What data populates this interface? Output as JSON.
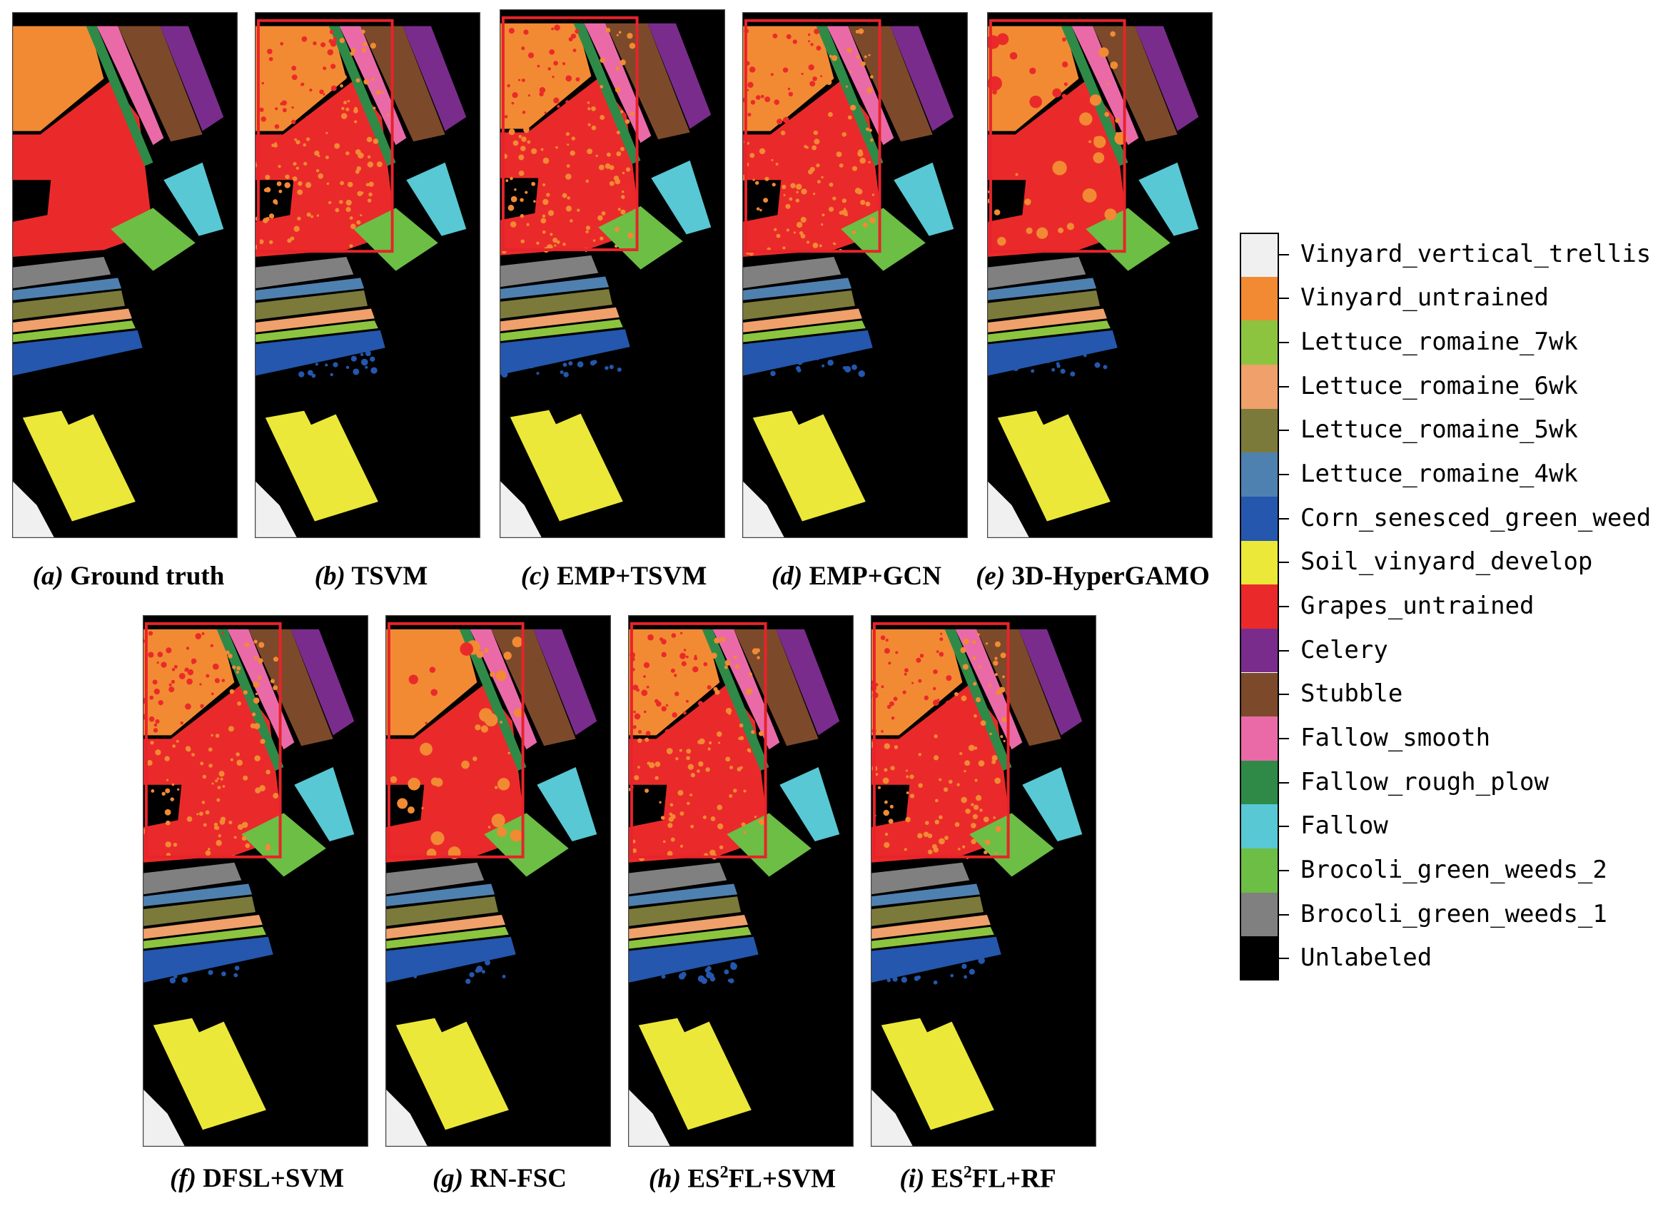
{
  "panels": [
    {
      "id": "a",
      "letter": "(a)",
      "method": "Ground truth",
      "sup": "",
      "method_tail": "",
      "frame": false
    },
    {
      "id": "b",
      "letter": "(b)",
      "method": "TSVM",
      "sup": "",
      "method_tail": "",
      "frame": true
    },
    {
      "id": "c",
      "letter": "(c)",
      "method": "EMP+TSVM",
      "sup": "",
      "method_tail": "",
      "frame": true
    },
    {
      "id": "d",
      "letter": "(d)",
      "method": "EMP+GCN",
      "sup": "",
      "method_tail": "",
      "frame": true
    },
    {
      "id": "e",
      "letter": "(e)",
      "method": "3D-HyperGAMO",
      "sup": "",
      "method_tail": "",
      "frame": true
    },
    {
      "id": "f",
      "letter": "(f)",
      "method": "DFSL+SVM",
      "sup": "",
      "method_tail": "",
      "frame": true
    },
    {
      "id": "g",
      "letter": "(g)",
      "method": "RN-FSC",
      "sup": "",
      "method_tail": "",
      "frame": true
    },
    {
      "id": "h",
      "letter": "(h)",
      "method": "ES",
      "sup": "2",
      "method_tail": "FL+SVM",
      "frame": true
    },
    {
      "id": "i",
      "letter": "(i)",
      "method": "ES",
      "sup": "2",
      "method_tail": "FL+RF",
      "frame": true
    }
  ],
  "legend": [
    {
      "label": "Vinyard_vertical_trellis",
      "color": "#f0f0f0"
    },
    {
      "label": "Vinyard_untrained",
      "color": "#f28a33"
    },
    {
      "label": "Lettuce_romaine_7wk",
      "color": "#8cc43f"
    },
    {
      "label": "Lettuce_romaine_6wk",
      "color": "#f0a06a"
    },
    {
      "label": "Lettuce_romaine_5wk",
      "color": "#7c7a3a"
    },
    {
      "label": "Lettuce_romaine_4wk",
      "color": "#4f81b0"
    },
    {
      "label": "Corn_senesced_green_weeds",
      "color": "#2457ad"
    },
    {
      "label": "Soil_vinyard_develop",
      "color": "#ebe83a"
    },
    {
      "label": "Grapes_untrained",
      "color": "#ea2a2a"
    },
    {
      "label": "Celery",
      "color": "#7a2c8c"
    },
    {
      "label": "Stubble",
      "color": "#7c4a2a"
    },
    {
      "label": "Fallow_smooth",
      "color": "#ea6aa8"
    },
    {
      "label": "Fallow_rough_plow",
      "color": "#2f8a48"
    },
    {
      "label": "Fallow",
      "color": "#58c8d4"
    },
    {
      "label": "Brocoli_green_weeds_2",
      "color": "#6cbe45"
    },
    {
      "label": "Brocoli_green_weeds_1",
      "color": "#808080"
    },
    {
      "label": "Unlabeled",
      "color": "#000000"
    }
  ],
  "highlight_color": "#e8232a"
}
